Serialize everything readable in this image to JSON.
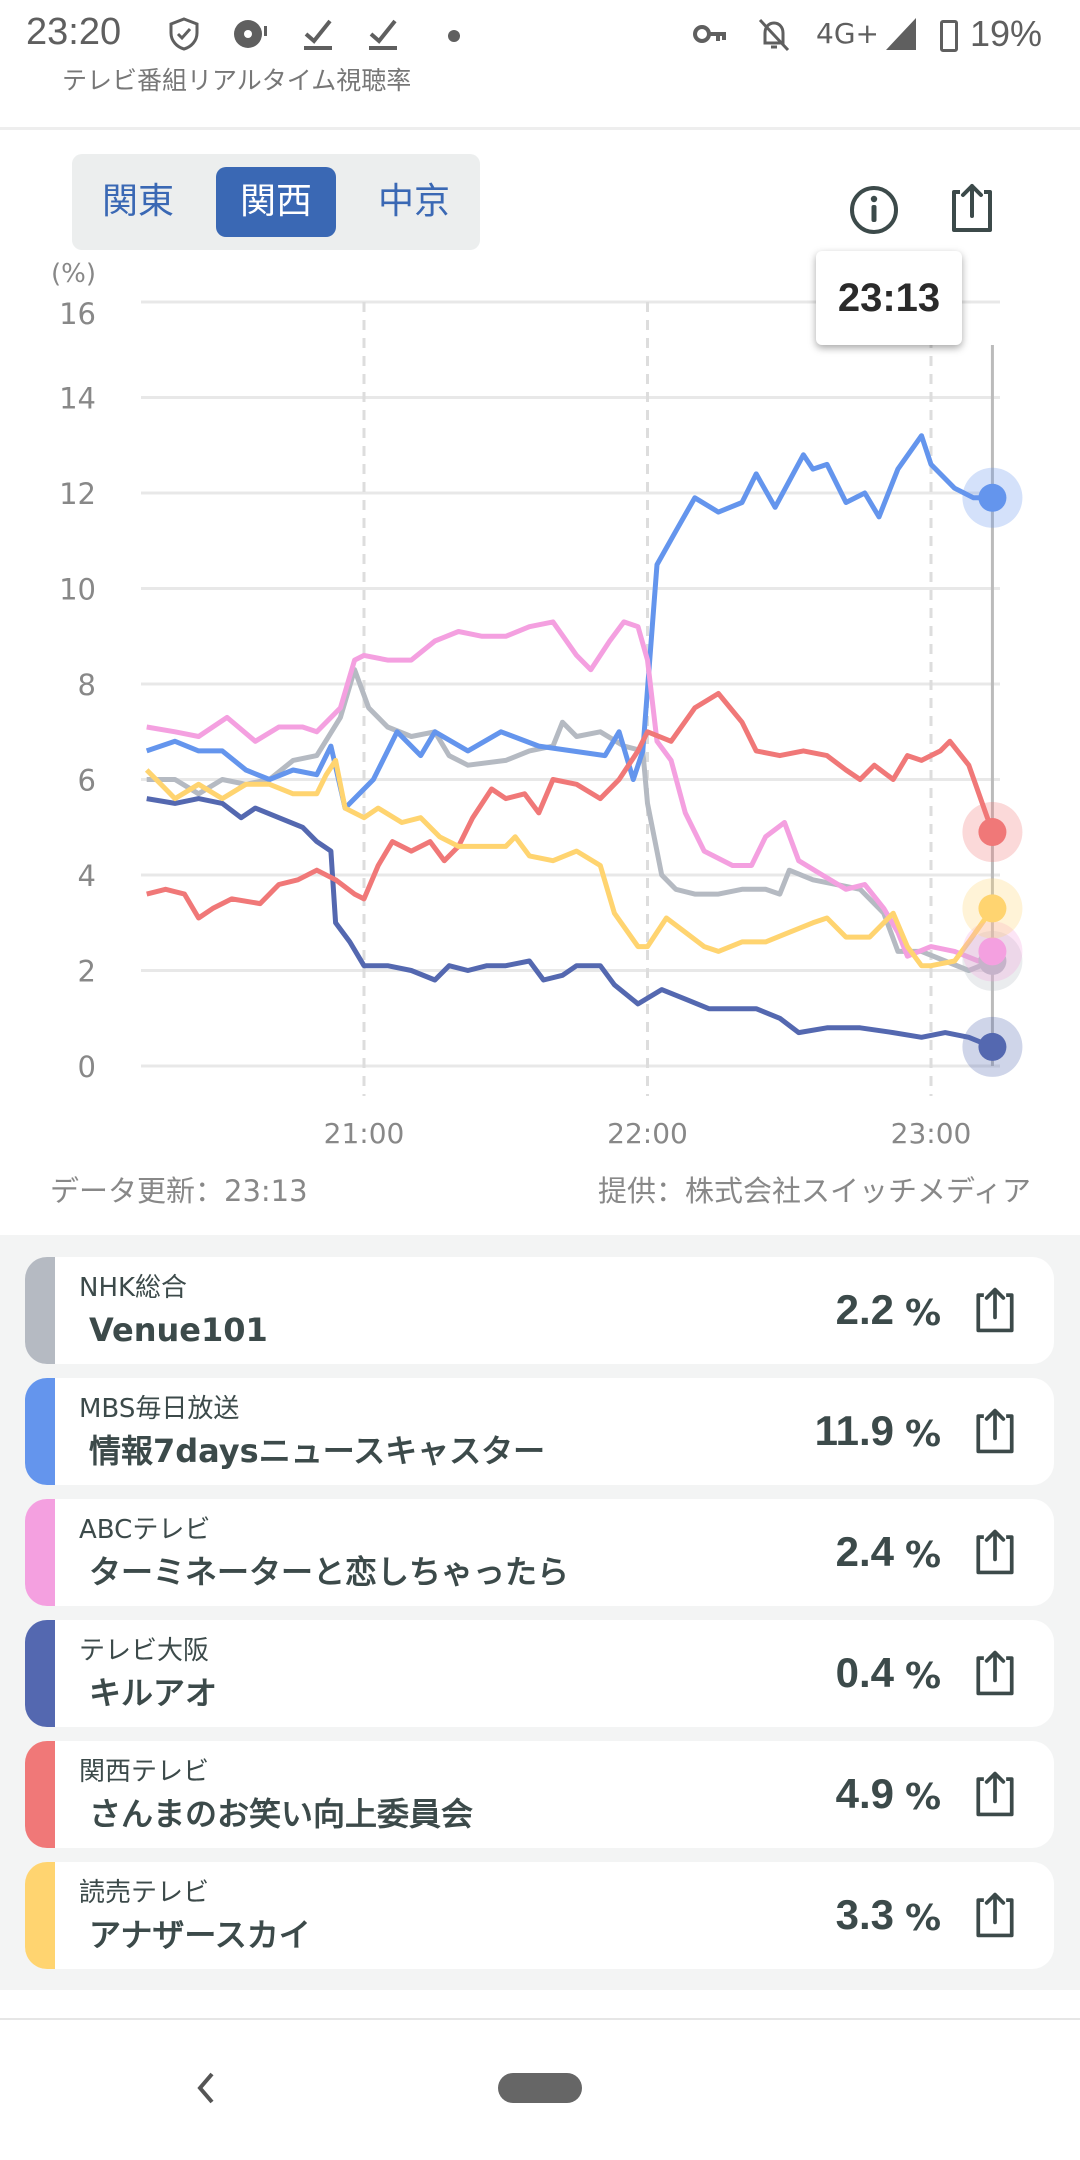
{
  "status_bar": {
    "time": "23:20",
    "network": "4G+",
    "battery": "19%"
  },
  "app": {
    "title": "テレビ番組リアルタイム視聴率"
  },
  "regions": {
    "options": [
      "関東",
      "関西",
      "中京"
    ],
    "selected": "関西"
  },
  "tooltip": {
    "time": "23:13"
  },
  "footer": {
    "updated": "データ更新：23:13",
    "provider": "提供：株式会社スイッチメディア"
  },
  "colors": {
    "accent": "#3a68b4",
    "NHK": "#b5bac2",
    "MBS": "#6495ed",
    "ABC": "#f4a0e0",
    "TVO": "#5468b0",
    "KTV": "#f07878",
    "YTV": "#ffd470"
  },
  "chart_data": {
    "type": "line",
    "ylabel": "(%)",
    "ylim": [
      0,
      16
    ],
    "yticks": [
      "0",
      "2",
      "4",
      "6",
      "8",
      "10",
      "12",
      "14",
      "16"
    ],
    "xticks": [
      "21:00",
      "22:00",
      "23:00"
    ],
    "xlim": [
      "20:14",
      "23:13"
    ],
    "grid": true,
    "series": [
      {
        "key": "NHK",
        "color": "#b5bac2",
        "points": [
          [
            "20:14",
            6.0
          ],
          [
            "20:20",
            6.0
          ],
          [
            "20:25",
            5.7
          ],
          [
            "20:30",
            6.0
          ],
          [
            "20:35",
            5.9
          ],
          [
            "20:40",
            6.0
          ],
          [
            "20:45",
            6.4
          ],
          [
            "20:50",
            6.5
          ],
          [
            "20:55",
            7.3
          ],
          [
            "20:58",
            8.3
          ],
          [
            "21:01",
            7.5
          ],
          [
            "21:05",
            7.1
          ],
          [
            "21:10",
            6.9
          ],
          [
            "21:15",
            7.0
          ],
          [
            "21:18",
            6.5
          ],
          [
            "21:22",
            6.3
          ],
          [
            "21:30",
            6.4
          ],
          [
            "21:35",
            6.6
          ],
          [
            "21:40",
            6.7
          ],
          [
            "21:42",
            7.2
          ],
          [
            "21:45",
            6.9
          ],
          [
            "21:50",
            7.0
          ],
          [
            "21:55",
            6.7
          ],
          [
            "21:59",
            6.6
          ],
          [
            "22:00",
            5.5
          ],
          [
            "22:03",
            4.0
          ],
          [
            "22:06",
            3.7
          ],
          [
            "22:10",
            3.6
          ],
          [
            "22:15",
            3.6
          ],
          [
            "22:20",
            3.7
          ],
          [
            "22:25",
            3.7
          ],
          [
            "22:28",
            3.6
          ],
          [
            "22:30",
            4.1
          ],
          [
            "22:35",
            3.9
          ],
          [
            "22:40",
            3.8
          ],
          [
            "22:45",
            3.7
          ],
          [
            "22:50",
            3.2
          ],
          [
            "22:53",
            2.4
          ],
          [
            "22:58",
            2.4
          ],
          [
            "23:03",
            2.2
          ],
          [
            "23:08",
            2.0
          ],
          [
            "23:13",
            2.2
          ]
        ]
      },
      {
        "key": "MBS",
        "color": "#6495ed",
        "points": [
          [
            "20:14",
            6.6
          ],
          [
            "20:20",
            6.8
          ],
          [
            "20:25",
            6.6
          ],
          [
            "20:30",
            6.6
          ],
          [
            "20:35",
            6.2
          ],
          [
            "20:40",
            6.0
          ],
          [
            "20:45",
            6.2
          ],
          [
            "20:50",
            6.1
          ],
          [
            "20:53",
            6.7
          ],
          [
            "20:56",
            5.4
          ],
          [
            "21:02",
            6.0
          ],
          [
            "21:07",
            7.0
          ],
          [
            "21:12",
            6.5
          ],
          [
            "21:15",
            7.0
          ],
          [
            "21:22",
            6.6
          ],
          [
            "21:29",
            7.0
          ],
          [
            "21:37",
            6.7
          ],
          [
            "21:44",
            6.6
          ],
          [
            "21:51",
            6.5
          ],
          [
            "21:54",
            7.0
          ],
          [
            "21:57",
            6.0
          ],
          [
            "21:59",
            6.6
          ],
          [
            "22:02",
            10.5
          ],
          [
            "22:06",
            11.2
          ],
          [
            "22:10",
            11.9
          ],
          [
            "22:15",
            11.6
          ],
          [
            "22:20",
            11.8
          ],
          [
            "22:23",
            12.4
          ],
          [
            "22:27",
            11.7
          ],
          [
            "22:33",
            12.8
          ],
          [
            "22:35",
            12.5
          ],
          [
            "22:38",
            12.6
          ],
          [
            "22:42",
            11.8
          ],
          [
            "22:46",
            12.0
          ],
          [
            "22:49",
            11.5
          ],
          [
            "22:53",
            12.5
          ],
          [
            "22:58",
            13.2
          ],
          [
            "23:00",
            12.6
          ],
          [
            "23:05",
            12.1
          ],
          [
            "23:09",
            11.9
          ],
          [
            "23:13",
            11.9
          ]
        ]
      },
      {
        "key": "ABC",
        "color": "#f4a0e0",
        "points": [
          [
            "20:14",
            7.1
          ],
          [
            "20:20",
            7.0
          ],
          [
            "20:25",
            6.9
          ],
          [
            "20:31",
            7.3
          ],
          [
            "20:37",
            6.8
          ],
          [
            "20:42",
            7.1
          ],
          [
            "20:47",
            7.1
          ],
          [
            "20:50",
            7.0
          ],
          [
            "20:55",
            7.5
          ],
          [
            "20:58",
            8.5
          ],
          [
            "21:00",
            8.6
          ],
          [
            "21:05",
            8.5
          ],
          [
            "21:10",
            8.5
          ],
          [
            "21:15",
            8.9
          ],
          [
            "21:20",
            9.1
          ],
          [
            "21:25",
            9.0
          ],
          [
            "21:30",
            9.0
          ],
          [
            "21:35",
            9.2
          ],
          [
            "21:40",
            9.3
          ],
          [
            "21:45",
            8.6
          ],
          [
            "21:48",
            8.3
          ],
          [
            "21:52",
            8.9
          ],
          [
            "21:55",
            9.3
          ],
          [
            "21:58",
            9.2
          ],
          [
            "22:00",
            8.5
          ],
          [
            "22:02",
            6.8
          ],
          [
            "22:05",
            6.4
          ],
          [
            "22:08",
            5.3
          ],
          [
            "22:12",
            4.5
          ],
          [
            "22:18",
            4.2
          ],
          [
            "22:22",
            4.2
          ],
          [
            "22:25",
            4.8
          ],
          [
            "22:29",
            5.1
          ],
          [
            "22:32",
            4.3
          ],
          [
            "22:37",
            4.0
          ],
          [
            "22:42",
            3.7
          ],
          [
            "22:46",
            3.8
          ],
          [
            "22:50",
            3.3
          ],
          [
            "22:53",
            2.8
          ],
          [
            "22:55",
            2.3
          ],
          [
            "23:00",
            2.5
          ],
          [
            "23:05",
            2.4
          ],
          [
            "23:10",
            2.2
          ],
          [
            "23:13",
            2.4
          ]
        ]
      },
      {
        "key": "TVO",
        "color": "#5468b0",
        "points": [
          [
            "20:14",
            5.6
          ],
          [
            "20:20",
            5.5
          ],
          [
            "20:25",
            5.6
          ],
          [
            "20:30",
            5.5
          ],
          [
            "20:34",
            5.2
          ],
          [
            "20:37",
            5.4
          ],
          [
            "20:42",
            5.2
          ],
          [
            "20:47",
            5.0
          ],
          [
            "20:50",
            4.7
          ],
          [
            "20:53",
            4.5
          ],
          [
            "20:54",
            3.0
          ],
          [
            "20:57",
            2.6
          ],
          [
            "21:00",
            2.1
          ],
          [
            "21:05",
            2.1
          ],
          [
            "21:10",
            2.0
          ],
          [
            "21:15",
            1.8
          ],
          [
            "21:18",
            2.1
          ],
          [
            "21:22",
            2.0
          ],
          [
            "21:26",
            2.1
          ],
          [
            "21:30",
            2.1
          ],
          [
            "21:35",
            2.2
          ],
          [
            "21:38",
            1.8
          ],
          [
            "21:42",
            1.9
          ],
          [
            "21:45",
            2.1
          ],
          [
            "21:50",
            2.1
          ],
          [
            "21:53",
            1.7
          ],
          [
            "21:58",
            1.3
          ],
          [
            "22:03",
            1.6
          ],
          [
            "22:08",
            1.4
          ],
          [
            "22:13",
            1.2
          ],
          [
            "22:18",
            1.2
          ],
          [
            "22:23",
            1.2
          ],
          [
            "22:28",
            1.0
          ],
          [
            "22:32",
            0.7
          ],
          [
            "22:38",
            0.8
          ],
          [
            "22:45",
            0.8
          ],
          [
            "22:52",
            0.7
          ],
          [
            "22:58",
            0.6
          ],
          [
            "23:03",
            0.7
          ],
          [
            "23:08",
            0.6
          ],
          [
            "23:13",
            0.4
          ]
        ]
      },
      {
        "key": "KTV",
        "color": "#f07878",
        "points": [
          [
            "20:14",
            3.6
          ],
          [
            "20:18",
            3.7
          ],
          [
            "20:22",
            3.6
          ],
          [
            "20:25",
            3.1
          ],
          [
            "20:28",
            3.3
          ],
          [
            "20:32",
            3.5
          ],
          [
            "20:38",
            3.4
          ],
          [
            "20:42",
            3.8
          ],
          [
            "20:46",
            3.9
          ],
          [
            "20:50",
            4.1
          ],
          [
            "20:54",
            3.9
          ],
          [
            "20:58",
            3.6
          ],
          [
            "21:00",
            3.5
          ],
          [
            "21:03",
            4.2
          ],
          [
            "21:06",
            4.7
          ],
          [
            "21:10",
            4.5
          ],
          [
            "21:14",
            4.7
          ],
          [
            "21:17",
            4.3
          ],
          [
            "21:20",
            4.6
          ],
          [
            "21:23",
            5.2
          ],
          [
            "21:27",
            5.8
          ],
          [
            "21:30",
            5.6
          ],
          [
            "21:34",
            5.7
          ],
          [
            "21:37",
            5.3
          ],
          [
            "21:40",
            6.0
          ],
          [
            "21:45",
            5.9
          ],
          [
            "21:50",
            5.6
          ],
          [
            "21:54",
            6.0
          ],
          [
            "21:58",
            6.6
          ],
          [
            "22:00",
            7.0
          ],
          [
            "22:05",
            6.8
          ],
          [
            "22:10",
            7.5
          ],
          [
            "22:15",
            7.8
          ],
          [
            "22:20",
            7.2
          ],
          [
            "22:23",
            6.6
          ],
          [
            "22:28",
            6.5
          ],
          [
            "22:33",
            6.6
          ],
          [
            "22:38",
            6.5
          ],
          [
            "22:42",
            6.2
          ],
          [
            "22:45",
            6.0
          ],
          [
            "22:48",
            6.3
          ],
          [
            "22:52",
            6.0
          ],
          [
            "22:55",
            6.5
          ],
          [
            "22:58",
            6.4
          ],
          [
            "23:02",
            6.6
          ],
          [
            "23:04",
            6.8
          ],
          [
            "23:08",
            6.3
          ],
          [
            "23:13",
            4.9
          ]
        ]
      },
      {
        "key": "YTV",
        "color": "#ffd470",
        "points": [
          [
            "20:14",
            6.2
          ],
          [
            "20:18",
            5.8
          ],
          [
            "20:20",
            5.6
          ],
          [
            "20:25",
            5.9
          ],
          [
            "20:30",
            5.6
          ],
          [
            "20:35",
            5.9
          ],
          [
            "20:40",
            5.9
          ],
          [
            "20:45",
            5.7
          ],
          [
            "20:50",
            5.7
          ],
          [
            "20:52",
            6.1
          ],
          [
            "20:54",
            6.4
          ],
          [
            "20:56",
            5.4
          ],
          [
            "21:00",
            5.2
          ],
          [
            "21:03",
            5.4
          ],
          [
            "21:08",
            5.1
          ],
          [
            "21:12",
            5.2
          ],
          [
            "21:16",
            4.8
          ],
          [
            "21:20",
            4.6
          ],
          [
            "21:25",
            4.6
          ],
          [
            "21:30",
            4.6
          ],
          [
            "21:32",
            4.8
          ],
          [
            "21:35",
            4.4
          ],
          [
            "21:40",
            4.3
          ],
          [
            "21:45",
            4.5
          ],
          [
            "21:50",
            4.2
          ],
          [
            "21:53",
            3.2
          ],
          [
            "21:58",
            2.5
          ],
          [
            "22:00",
            2.5
          ],
          [
            "22:04",
            3.1
          ],
          [
            "22:08",
            2.8
          ],
          [
            "22:12",
            2.5
          ],
          [
            "22:15",
            2.4
          ],
          [
            "22:20",
            2.6
          ],
          [
            "22:25",
            2.6
          ],
          [
            "22:30",
            2.8
          ],
          [
            "22:35",
            3.0
          ],
          [
            "22:38",
            3.1
          ],
          [
            "22:42",
            2.7
          ],
          [
            "22:47",
            2.7
          ],
          [
            "22:52",
            3.2
          ],
          [
            "22:55",
            2.5
          ],
          [
            "22:58",
            2.1
          ],
          [
            "23:00",
            2.1
          ],
          [
            "23:05",
            2.2
          ],
          [
            "23:08",
            2.6
          ],
          [
            "23:13",
            3.3
          ]
        ]
      }
    ]
  },
  "list": [
    {
      "key": "NHK",
      "channel": "NHK総合",
      "program": "Venue101",
      "value": "2.2",
      "unit": "%",
      "color": "#b5bac2"
    },
    {
      "key": "MBS",
      "channel": "MBS毎日放送",
      "program": "情報7daysニュースキャスター",
      "value": "11.9",
      "unit": "%",
      "color": "#6495ed"
    },
    {
      "key": "ABC",
      "channel": "ABCテレビ",
      "program": "ターミネーターと恋しちゃったら",
      "value": "2.4",
      "unit": "%",
      "color": "#f4a0e0"
    },
    {
      "key": "TVO",
      "channel": "テレビ大阪",
      "program": "キルアオ",
      "value": "0.4",
      "unit": "%",
      "color": "#5468b0"
    },
    {
      "key": "KTV",
      "channel": "関西テレビ",
      "program": "さんまのお笑い向上委員会",
      "value": "4.9",
      "unit": "%",
      "color": "#f07878"
    },
    {
      "key": "YTV",
      "channel": "読売テレビ",
      "program": "アナザースカイ",
      "value": "3.3",
      "unit": "%",
      "color": "#ffd470"
    }
  ]
}
